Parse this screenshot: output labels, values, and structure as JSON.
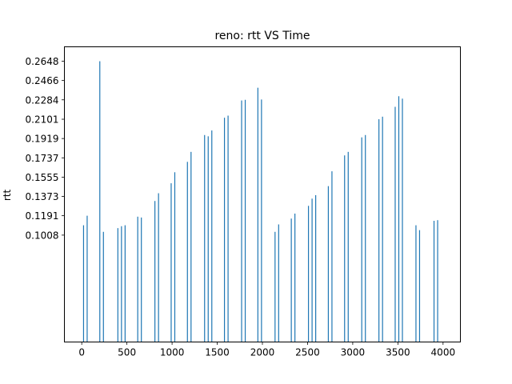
{
  "chart_data": {
    "type": "bar",
    "title": "reno: rtt VS Time",
    "xlabel": "",
    "ylabel": "rtt",
    "xlim": [
      -192,
      4192
    ],
    "ylim": [
      0,
      0.2784
    ],
    "x_ticks": [
      0,
      500,
      1000,
      1500,
      2000,
      2500,
      3000,
      3500,
      4000
    ],
    "y_ticks": [
      0.1008,
      0.1191,
      0.1373,
      0.1555,
      0.1737,
      0.1919,
      0.2101,
      0.2284,
      0.2466,
      0.2648
    ],
    "x_tick_labels": [
      "0",
      "500",
      "1000",
      "1500",
      "2000",
      "2500",
      "3000",
      "3500",
      "4000"
    ],
    "y_tick_labels": [
      "0.1008",
      "0.1191",
      "0.1373",
      "0.1555",
      "0.1737",
      "0.1919",
      "0.2101",
      "0.2284",
      "0.2466",
      "0.2648"
    ],
    "grid": false,
    "color": "#1f77b4",
    "series": [
      {
        "x": [
          20,
          60,
          200,
          240,
          400,
          440,
          480,
          620,
          660,
          810,
          850,
          990,
          1030,
          1170,
          1210,
          1360,
          1400,
          1440,
          1580,
          1620,
          1770,
          1810,
          1950,
          1990,
          2140,
          2180,
          2320,
          2360,
          2510,
          2550,
          2590,
          2730,
          2770,
          2910,
          2950,
          3100,
          3140,
          3290,
          3330,
          3470,
          3510,
          3550,
          3700,
          3740,
          3900,
          3940
        ],
        "values": [
          0.1101,
          0.1191,
          0.2648,
          0.1039,
          0.1074,
          0.1092,
          0.1101,
          0.1182,
          0.1174,
          0.133,
          0.1403,
          0.1497,
          0.1601,
          0.1699,
          0.1793,
          0.1952,
          0.194,
          0.1995,
          0.2115,
          0.2135,
          0.2278,
          0.2284,
          0.2398,
          0.2287,
          0.1039,
          0.1109,
          0.1164,
          0.1211,
          0.1284,
          0.1352,
          0.1385,
          0.147,
          0.161,
          0.176,
          0.1793,
          0.193,
          0.1952,
          0.2101,
          0.2125,
          0.2218,
          0.2318,
          0.2295,
          0.1101,
          0.1055,
          0.1143,
          0.1149
        ]
      }
    ]
  }
}
